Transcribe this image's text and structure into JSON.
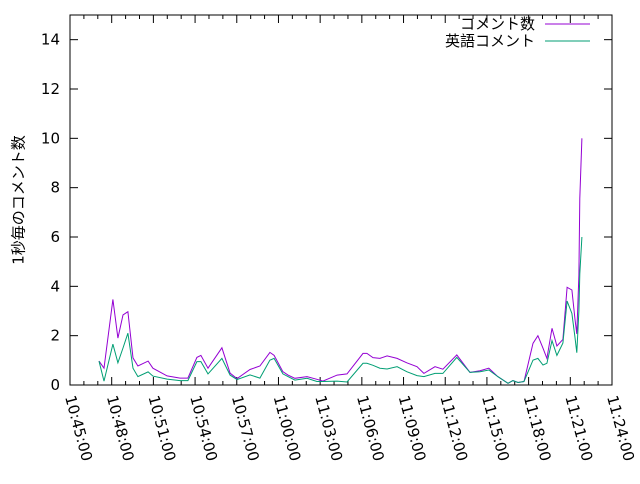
{
  "chart_data": {
    "type": "line",
    "title": "",
    "xlabel": "",
    "ylabel": "1秒毎のコメント数",
    "xlim": [
      "10:45:00",
      "11:24:00"
    ],
    "ylim": [
      0,
      15
    ],
    "x_ticks": [
      "10:45:00",
      "10:48:00",
      "10:51:00",
      "10:54:00",
      "10:57:00",
      "11:00:00",
      "11:03:00",
      "11:06:00",
      "11:09:00",
      "11:12:00",
      "11:15:00",
      "11:18:00",
      "11:21:00",
      "11:24:00"
    ],
    "y_ticks": [
      "0",
      "2",
      "4",
      "6",
      "8",
      "10",
      "12",
      "14"
    ],
    "grid": false,
    "legend_position": "top-right",
    "x": [
      "10:47:05",
      "10:47:27",
      "10:48:05",
      "10:48:27",
      "10:48:49",
      "10:49:10",
      "10:49:32",
      "10:49:53",
      "10:50:37",
      "10:50:58",
      "10:51:59",
      "10:52:55",
      "10:53:29",
      "10:54:08",
      "10:54:25",
      "10:54:56",
      "10:55:56",
      "10:56:31",
      "10:57:01",
      "10:57:57",
      "10:58:40",
      "10:59:23",
      "10:59:41",
      "11:00:19",
      "11:00:41",
      "11:01:11",
      "11:02:03",
      "11:02:46",
      "11:03:12",
      "11:04:13",
      "11:04:56",
      "11:06:05",
      "11:06:22",
      "11:06:48",
      "11:07:18",
      "11:07:49",
      "11:08:32",
      "11:09:14",
      "11:09:58",
      "11:10:28",
      "11:11:16",
      "11:11:50",
      "11:12:50",
      "11:13:47",
      "11:14:30",
      "11:15:08",
      "11:15:47",
      "11:16:31",
      "11:16:52",
      "11:17:14",
      "11:17:40",
      "11:18:19",
      "11:18:40",
      "11:19:02",
      "11:19:19",
      "11:19:41",
      "11:20:02",
      "11:20:28",
      "11:20:46",
      "11:21:07",
      "11:21:20",
      "11:21:28",
      "11:21:37",
      "11:21:41",
      "11:21:50"
    ],
    "series": [
      {
        "name": "コメント数",
        "color": "#9400d3",
        "values": [
          0.97,
          0.68,
          3.47,
          1.9,
          2.84,
          2.97,
          1.1,
          0.77,
          0.97,
          0.68,
          0.37,
          0.28,
          0.28,
          1.12,
          1.2,
          0.68,
          1.51,
          0.48,
          0.26,
          0.63,
          0.77,
          1.32,
          1.2,
          0.54,
          0.4,
          0.27,
          0.34,
          0.23,
          0.16,
          0.4,
          0.45,
          1.28,
          1.28,
          1.11,
          1.08,
          1.18,
          1.08,
          0.9,
          0.74,
          0.47,
          0.74,
          0.64,
          1.22,
          0.51,
          0.58,
          0.68,
          0.34,
          0.07,
          0.18,
          0.1,
          0.14,
          1.69,
          2.0,
          1.49,
          1.08,
          2.3,
          1.58,
          1.85,
          3.96,
          3.85,
          2.7,
          2.07,
          4.46,
          7.57,
          10.0
        ]
      },
      {
        "name": "英語コメント",
        "color": "#009e73",
        "values": [
          0.97,
          0.16,
          1.66,
          0.9,
          1.5,
          2.1,
          0.68,
          0.34,
          0.53,
          0.36,
          0.24,
          0.18,
          0.18,
          0.95,
          0.95,
          0.45,
          1.08,
          0.4,
          0.22,
          0.41,
          0.28,
          1.01,
          1.08,
          0.45,
          0.34,
          0.2,
          0.27,
          0.14,
          0.14,
          0.16,
          0.12,
          0.88,
          0.88,
          0.8,
          0.68,
          0.65,
          0.74,
          0.54,
          0.38,
          0.34,
          0.47,
          0.47,
          1.12,
          0.51,
          0.54,
          0.61,
          0.34,
          0.07,
          0.18,
          0.1,
          0.14,
          1.01,
          1.08,
          0.81,
          0.88,
          1.8,
          1.2,
          1.7,
          3.4,
          2.9,
          1.96,
          1.31,
          3.0,
          4.5,
          6.0
        ]
      }
    ]
  }
}
